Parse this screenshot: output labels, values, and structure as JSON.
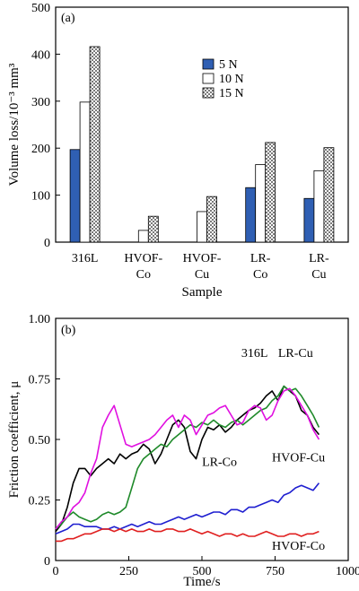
{
  "chart_data": [
    {
      "type": "bar",
      "panel_label": "(a)",
      "title": "",
      "xlabel": "Sample",
      "ylabel": "Volume loss/10⁻³ mm³",
      "ylim": [
        0,
        500
      ],
      "yticks": [
        0,
        100,
        200,
        300,
        400,
        500
      ],
      "categories": [
        {
          "line1": "316L",
          "line2": ""
        },
        {
          "line1": "HVOF-",
          "line2": "Co"
        },
        {
          "line1": "HVOF-",
          "line2": "Cu"
        },
        {
          "line1": "LR-",
          "line2": "Co"
        },
        {
          "line1": "LR-",
          "line2": "Cu"
        }
      ],
      "series": [
        {
          "name": "5 N",
          "color": "#2f5fb3",
          "pattern": "solid",
          "values": [
            197,
            null,
            null,
            116,
            93
          ]
        },
        {
          "name": "10 N",
          "color": "#ffffff",
          "pattern": "open",
          "values": [
            298,
            25,
            65,
            165,
            152
          ]
        },
        {
          "name": "15 N",
          "color": "#888888",
          "pattern": "checker",
          "values": [
            416,
            55,
            97,
            212,
            201
          ]
        }
      ],
      "legend_position": "right-middle",
      "grid": false
    },
    {
      "type": "line",
      "panel_label": "(b)",
      "title": "",
      "xlabel": "Time/s",
      "ylabel": "Friction coefficient, μ",
      "xlim": [
        0,
        1000
      ],
      "ylim": [
        0,
        1.0
      ],
      "xticks": [
        0,
        250,
        500,
        750,
        1000
      ],
      "ytick_labels": [
        "0",
        "0.25",
        "0.50",
        "0.75",
        "1.00"
      ],
      "yticks": [
        0,
        0.25,
        0.5,
        0.75,
        1.0
      ],
      "grid": false,
      "series": [
        {
          "name": "316L",
          "color": "#000000",
          "x": [
            0,
            20,
            40,
            60,
            80,
            100,
            120,
            140,
            160,
            180,
            200,
            220,
            240,
            260,
            280,
            300,
            320,
            340,
            360,
            380,
            400,
            420,
            440,
            460,
            480,
            500,
            520,
            540,
            560,
            580,
            600,
            620,
            640,
            660,
            680,
            700,
            720,
            740,
            760,
            780,
            800,
            820,
            840,
            860,
            880,
            900
          ],
          "y": [
            0.12,
            0.15,
            0.22,
            0.32,
            0.38,
            0.38,
            0.35,
            0.38,
            0.4,
            0.42,
            0.4,
            0.44,
            0.42,
            0.44,
            0.45,
            0.48,
            0.46,
            0.4,
            0.44,
            0.5,
            0.56,
            0.58,
            0.55,
            0.45,
            0.42,
            0.5,
            0.55,
            0.54,
            0.56,
            0.53,
            0.55,
            0.58,
            0.6,
            0.62,
            0.63,
            0.65,
            0.68,
            0.7,
            0.66,
            0.72,
            0.7,
            0.68,
            0.62,
            0.6,
            0.55,
            0.52
          ]
        },
        {
          "name": "LR-Cu",
          "color": "#1f8a2a",
          "x": [
            0,
            20,
            40,
            60,
            80,
            100,
            120,
            140,
            160,
            180,
            200,
            220,
            240,
            260,
            280,
            300,
            320,
            340,
            360,
            380,
            400,
            420,
            440,
            460,
            480,
            500,
            520,
            540,
            560,
            580,
            600,
            620,
            640,
            660,
            680,
            700,
            720,
            740,
            760,
            780,
            800,
            820,
            840,
            860,
            880,
            900
          ],
          "y": [
            0.13,
            0.15,
            0.18,
            0.2,
            0.18,
            0.17,
            0.16,
            0.17,
            0.19,
            0.2,
            0.19,
            0.2,
            0.22,
            0.3,
            0.38,
            0.42,
            0.44,
            0.46,
            0.48,
            0.47,
            0.5,
            0.52,
            0.54,
            0.56,
            0.55,
            0.57,
            0.56,
            0.58,
            0.56,
            0.55,
            0.57,
            0.58,
            0.56,
            0.58,
            0.6,
            0.62,
            0.63,
            0.66,
            0.68,
            0.72,
            0.7,
            0.71,
            0.68,
            0.64,
            0.6,
            0.55
          ]
        },
        {
          "name": "LR-Co",
          "color": "#e010e0",
          "x": [
            0,
            20,
            40,
            60,
            80,
            100,
            120,
            140,
            160,
            180,
            200,
            220,
            240,
            260,
            280,
            300,
            320,
            340,
            360,
            380,
            400,
            420,
            440,
            460,
            480,
            500,
            520,
            540,
            560,
            580,
            600,
            620,
            640,
            660,
            680,
            700,
            720,
            740,
            760,
            780,
            800,
            820,
            840,
            860,
            880,
            900
          ],
          "y": [
            0.13,
            0.16,
            0.18,
            0.22,
            0.24,
            0.28,
            0.36,
            0.42,
            0.55,
            0.6,
            0.64,
            0.56,
            0.48,
            0.47,
            0.48,
            0.49,
            0.5,
            0.52,
            0.55,
            0.58,
            0.6,
            0.55,
            0.6,
            0.58,
            0.52,
            0.56,
            0.6,
            0.61,
            0.63,
            0.64,
            0.6,
            0.56,
            0.57,
            0.62,
            0.64,
            0.63,
            0.58,
            0.6,
            0.66,
            0.7,
            0.71,
            0.68,
            0.64,
            0.6,
            0.54,
            0.5
          ]
        },
        {
          "name": "HVOF-Cu",
          "color": "#1f1fd0",
          "x": [
            0,
            20,
            40,
            60,
            80,
            100,
            120,
            140,
            160,
            180,
            200,
            220,
            240,
            260,
            280,
            300,
            320,
            340,
            360,
            380,
            400,
            420,
            440,
            460,
            480,
            500,
            520,
            540,
            560,
            580,
            600,
            620,
            640,
            660,
            680,
            700,
            720,
            740,
            760,
            780,
            800,
            820,
            840,
            860,
            880,
            900
          ],
          "y": [
            0.11,
            0.12,
            0.13,
            0.15,
            0.15,
            0.14,
            0.14,
            0.14,
            0.13,
            0.13,
            0.14,
            0.13,
            0.14,
            0.15,
            0.14,
            0.15,
            0.16,
            0.15,
            0.15,
            0.16,
            0.17,
            0.18,
            0.17,
            0.18,
            0.19,
            0.18,
            0.19,
            0.2,
            0.2,
            0.19,
            0.21,
            0.21,
            0.2,
            0.22,
            0.22,
            0.23,
            0.24,
            0.25,
            0.24,
            0.27,
            0.28,
            0.3,
            0.31,
            0.3,
            0.29,
            0.32
          ]
        },
        {
          "name": "HVOF-Co",
          "color": "#e02020",
          "x": [
            0,
            20,
            40,
            60,
            80,
            100,
            120,
            140,
            160,
            180,
            200,
            220,
            240,
            260,
            280,
            300,
            320,
            340,
            360,
            380,
            400,
            420,
            440,
            460,
            480,
            500,
            520,
            540,
            560,
            580,
            600,
            620,
            640,
            660,
            680,
            700,
            720,
            740,
            760,
            780,
            800,
            820,
            840,
            860,
            880,
            900
          ],
          "y": [
            0.08,
            0.08,
            0.09,
            0.09,
            0.1,
            0.11,
            0.11,
            0.12,
            0.13,
            0.13,
            0.12,
            0.13,
            0.12,
            0.13,
            0.12,
            0.12,
            0.13,
            0.12,
            0.12,
            0.13,
            0.13,
            0.12,
            0.12,
            0.13,
            0.12,
            0.11,
            0.12,
            0.11,
            0.1,
            0.11,
            0.11,
            0.1,
            0.11,
            0.1,
            0.1,
            0.11,
            0.12,
            0.11,
            0.1,
            0.1,
            0.11,
            0.11,
            0.1,
            0.11,
            0.11,
            0.12
          ]
        }
      ],
      "annotations": [
        {
          "text": "316L",
          "x": 680,
          "y": 0.84,
          "anchor": "middle"
        },
        {
          "text": "LR-Cu",
          "x": 820,
          "y": 0.84,
          "anchor": "middle"
        },
        {
          "text": "LR-Co",
          "x": 560,
          "y": 0.39,
          "anchor": "middle"
        },
        {
          "text": "HVOF-Cu",
          "x": 830,
          "y": 0.41,
          "anchor": "middle"
        },
        {
          "text": "HVOF-Co",
          "x": 830,
          "y": 0.045,
          "anchor": "middle"
        }
      ]
    }
  ]
}
